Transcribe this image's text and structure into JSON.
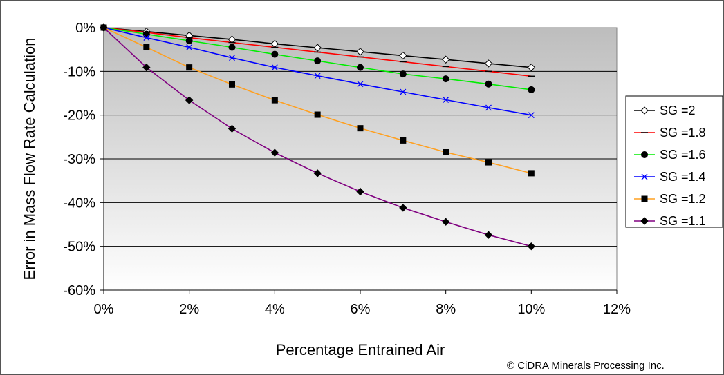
{
  "chart_data": {
    "type": "line",
    "xlabel": "Percentage Entrained Air",
    "ylabel": "Error in Mass Flow Rate Calculation",
    "xlim": [
      0,
      12
    ],
    "ylim": [
      -60,
      0
    ],
    "x_ticks": [
      0,
      2,
      4,
      6,
      8,
      10,
      12
    ],
    "x_tick_labels": [
      "0%",
      "2%",
      "4%",
      "6%",
      "8%",
      "10%",
      "12%"
    ],
    "y_ticks": [
      0,
      -10,
      -20,
      -30,
      -40,
      -50,
      -60
    ],
    "y_tick_labels": [
      "0%",
      "-10%",
      "-20%",
      "-30%",
      "-40%",
      "-50%",
      "-60%"
    ],
    "grid": "horizontal",
    "plot_background": "gradient-gray",
    "legend_position": "right",
    "x": [
      0,
      1,
      2,
      3,
      4,
      5,
      6,
      7,
      8,
      9,
      10
    ],
    "series": [
      {
        "name": "SG =2",
        "color": "#000000",
        "marker": "diamond-open",
        "values": [
          0,
          -0.9,
          -1.8,
          -2.7,
          -3.7,
          -4.6,
          -5.5,
          -6.4,
          -7.3,
          -8.2,
          -9.1
        ]
      },
      {
        "name": "SG =1.8",
        "color": "#ff0000",
        "marker": "dash",
        "values": [
          0,
          -1.1,
          -2.3,
          -3.4,
          -4.5,
          -5.6,
          -6.7,
          -7.8,
          -8.9,
          -10.0,
          -11.1
        ]
      },
      {
        "name": "SG =1.6",
        "color": "#00ee00",
        "marker": "circle",
        "values": [
          0,
          -1.5,
          -3.0,
          -4.5,
          -6.1,
          -7.6,
          -9.1,
          -10.6,
          -11.7,
          -12.9,
          -14.2
        ]
      },
      {
        "name": "SG =1.4",
        "color": "#0000ff",
        "marker": "x",
        "values": [
          0,
          -2.3,
          -4.5,
          -6.9,
          -9.1,
          -11.0,
          -12.9,
          -14.7,
          -16.5,
          -18.3,
          -20.0
        ]
      },
      {
        "name": "SG =1.2",
        "color": "#ffa020",
        "marker": "square",
        "values": [
          0,
          -4.5,
          -9.1,
          -13.0,
          -16.6,
          -19.9,
          -23.0,
          -25.8,
          -28.5,
          -30.8,
          -33.3
        ]
      },
      {
        "name": "SG =1.1",
        "color": "#800080",
        "marker": "diamond",
        "values": [
          0,
          -9.1,
          -16.6,
          -23.1,
          -28.6,
          -33.3,
          -37.5,
          -41.2,
          -44.4,
          -47.4,
          -50.0
        ]
      }
    ]
  },
  "copyright": "© CiDRA Minerals Processing Inc."
}
